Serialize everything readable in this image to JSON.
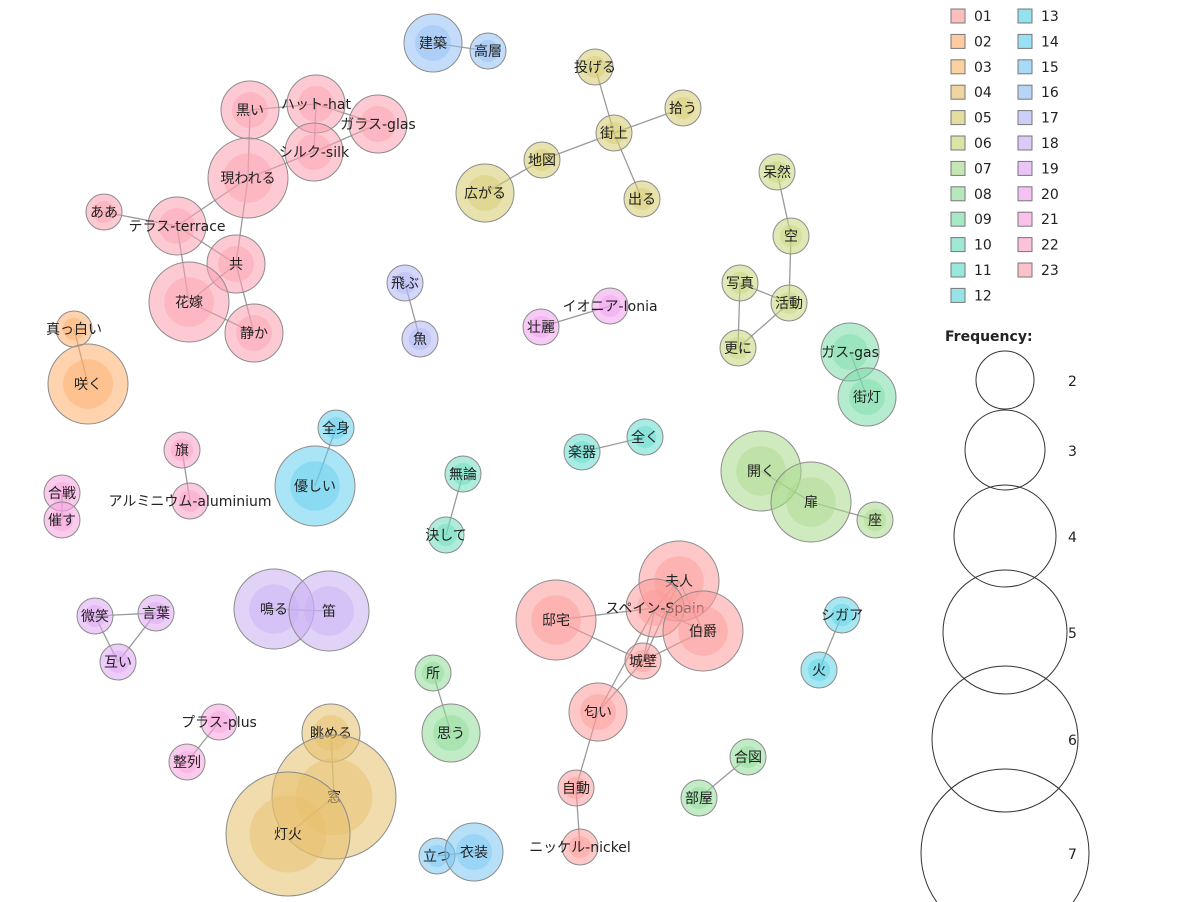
{
  "chart_data": {
    "type": "network",
    "legend": {
      "groups": [
        {
          "id": "01",
          "color": "#fb9a99"
        },
        {
          "id": "02",
          "color": "#fdae6b"
        },
        {
          "id": "03",
          "color": "#f7b96b"
        },
        {
          "id": "04",
          "color": "#e6bf6b"
        },
        {
          "id": "05",
          "color": "#d6cb6e"
        },
        {
          "id": "06",
          "color": "#c6d67a"
        },
        {
          "id": "07",
          "color": "#a8d98a"
        },
        {
          "id": "08",
          "color": "#8fdc97"
        },
        {
          "id": "09",
          "color": "#79dca8"
        },
        {
          "id": "10",
          "color": "#6ddcbd"
        },
        {
          "id": "11",
          "color": "#63dccd"
        },
        {
          "id": "12",
          "color": "#5ed6df"
        },
        {
          "id": "13",
          "color": "#5cd3e6"
        },
        {
          "id": "14",
          "color": "#63cfee"
        },
        {
          "id": "15",
          "color": "#79c6f3"
        },
        {
          "id": "16",
          "color": "#92bff5"
        },
        {
          "id": "17",
          "color": "#b1b6f5"
        },
        {
          "id": "18",
          "color": "#c8aef3"
        },
        {
          "id": "19",
          "color": "#dfa5f3"
        },
        {
          "id": "20",
          "color": "#f0a0ef"
        },
        {
          "id": "21",
          "color": "#f8a1de"
        },
        {
          "id": "22",
          "color": "#fba0c8"
        },
        {
          "id": "23",
          "color": "#fb9fae"
        }
      ],
      "frequency_title": "Frequency:",
      "frequency_values": [
        2,
        3,
        4,
        5,
        6,
        7
      ]
    },
    "nodes": [
      {
        "id": "kuroi",
        "label": "黒い",
        "group": "23",
        "freq": 2
      },
      {
        "id": "hat",
        "label": "ハット-hat",
        "group": "23",
        "freq": 2
      },
      {
        "id": "glass",
        "label": "ガラス-glas",
        "group": "23",
        "freq": 2
      },
      {
        "id": "silk",
        "label": "シルク-silk",
        "group": "23",
        "freq": 2
      },
      {
        "id": "arawareru",
        "label": "現われる",
        "group": "23",
        "freq": 3
      },
      {
        "id": "aa",
        "label": "ああ",
        "group": "23",
        "freq": 1
      },
      {
        "id": "terrace",
        "label": "テラス-terrace",
        "group": "23",
        "freq": 2
      },
      {
        "id": "tomo",
        "label": "共",
        "group": "23",
        "freq": 2
      },
      {
        "id": "hanayome",
        "label": "花嫁",
        "group": "23",
        "freq": 3
      },
      {
        "id": "shizuka",
        "label": "静か",
        "group": "23",
        "freq": 2
      },
      {
        "id": "kenchiku",
        "label": "建築",
        "group": "16",
        "freq": 2
      },
      {
        "id": "kouso",
        "label": "高層",
        "group": "16",
        "freq": 1
      },
      {
        "id": "nageru",
        "label": "投げる",
        "group": "05",
        "freq": 1
      },
      {
        "id": "hirou",
        "label": "拾う",
        "group": "05",
        "freq": 1
      },
      {
        "id": "machigami",
        "label": "街上",
        "group": "05",
        "freq": 1
      },
      {
        "id": "chizu",
        "label": "地図",
        "group": "05",
        "freq": 1
      },
      {
        "id": "hirogaru",
        "label": "広がる",
        "group": "05",
        "freq": 2
      },
      {
        "id": "deru",
        "label": "出る",
        "group": "05",
        "freq": 1
      },
      {
        "id": "bozen",
        "label": "呆然",
        "group": "06",
        "freq": 1
      },
      {
        "id": "sora",
        "label": "空",
        "group": "06",
        "freq": 1
      },
      {
        "id": "shashin",
        "label": "写真",
        "group": "06",
        "freq": 1
      },
      {
        "id": "katsudo",
        "label": "活動",
        "group": "06",
        "freq": 1
      },
      {
        "id": "sarani",
        "label": "更に",
        "group": "06",
        "freq": 1
      },
      {
        "id": "tobu",
        "label": "飛ぶ",
        "group": "17",
        "freq": 1
      },
      {
        "id": "sakana",
        "label": "魚",
        "group": "17",
        "freq": 1
      },
      {
        "id": "ionia",
        "label": "イオニア-Ionia",
        "group": "20",
        "freq": 1
      },
      {
        "id": "sorei",
        "label": "壮麗",
        "group": "20",
        "freq": 1
      },
      {
        "id": "gas",
        "label": "ガス-gas",
        "group": "09",
        "freq": 2
      },
      {
        "id": "gaito",
        "label": "街灯",
        "group": "09",
        "freq": 2
      },
      {
        "id": "masshiroi",
        "label": "真っ白い",
        "group": "02",
        "freq": 1
      },
      {
        "id": "saku",
        "label": "咲く",
        "group": "02",
        "freq": 3
      },
      {
        "id": "hata",
        "label": "旗",
        "group": "22",
        "freq": 1
      },
      {
        "id": "aluminium",
        "label": "アルミニウム-aluminium",
        "group": "22",
        "freq": 1
      },
      {
        "id": "zenshin",
        "label": "全身",
        "group": "14",
        "freq": 1
      },
      {
        "id": "yasashii",
        "label": "優しい",
        "group": "14",
        "freq": 3
      },
      {
        "id": "muron",
        "label": "無論",
        "group": "10",
        "freq": 1
      },
      {
        "id": "kesshite",
        "label": "決して",
        "group": "10",
        "freq": 1
      },
      {
        "id": "gakki",
        "label": "楽器",
        "group": "11",
        "freq": 1
      },
      {
        "id": "mattaku",
        "label": "全く",
        "group": "11",
        "freq": 1
      },
      {
        "id": "hiraku",
        "label": "開く",
        "group": "07",
        "freq": 3
      },
      {
        "id": "tobira",
        "label": "扉",
        "group": "07",
        "freq": 3
      },
      {
        "id": "za",
        "label": "座",
        "group": "07",
        "freq": 1
      },
      {
        "id": "kassen",
        "label": "合戦",
        "group": "21",
        "freq": 1
      },
      {
        "id": "moyosu",
        "label": "催す",
        "group": "21",
        "freq": 1
      },
      {
        "id": "bisho",
        "label": "微笑",
        "group": "19",
        "freq": 1
      },
      {
        "id": "kotoba",
        "label": "言葉",
        "group": "19",
        "freq": 1
      },
      {
        "id": "tagai",
        "label": "互い",
        "group": "19",
        "freq": 1
      },
      {
        "id": "naru",
        "label": "鳴る",
        "group": "18",
        "freq": 3
      },
      {
        "id": "fue",
        "label": "笛",
        "group": "18",
        "freq": 3
      },
      {
        "id": "tokoro",
        "label": "所",
        "group": "08",
        "freq": 1
      },
      {
        "id": "omou",
        "label": "思う",
        "group": "08",
        "freq": 2
      },
      {
        "id": "teitaku",
        "label": "邸宅",
        "group": "01",
        "freq": 3
      },
      {
        "id": "fujin",
        "label": "夫人",
        "group": "01",
        "freq": 3
      },
      {
        "id": "spain",
        "label": "スペイン-Spain",
        "group": "01",
        "freq": 2
      },
      {
        "id": "hakushaku",
        "label": "伯爵",
        "group": "01",
        "freq": 3
      },
      {
        "id": "joheki",
        "label": "城壁",
        "group": "01",
        "freq": 1
      },
      {
        "id": "nioi",
        "label": "匂い",
        "group": "01",
        "freq": 2
      },
      {
        "id": "jido",
        "label": "自動",
        "group": "01",
        "freq": 1
      },
      {
        "id": "nickel",
        "label": "ニッケル-nickel",
        "group": "01",
        "freq": 1
      },
      {
        "id": "cigar",
        "label": "シガア",
        "group": "13",
        "freq": 1
      },
      {
        "id": "hi",
        "label": "火",
        "group": "13",
        "freq": 1
      },
      {
        "id": "plus",
        "label": "プラス-plus",
        "group": "21",
        "freq": 1
      },
      {
        "id": "seiretsu",
        "label": "整列",
        "group": "21",
        "freq": 1
      },
      {
        "id": "nagameru",
        "label": "眺める",
        "group": "04",
        "freq": 2
      },
      {
        "id": "mado",
        "label": "窓",
        "group": "04",
        "freq": 5
      },
      {
        "id": "toka",
        "label": "灯火",
        "group": "04",
        "freq": 5
      },
      {
        "id": "aizu",
        "label": "合図",
        "group": "08",
        "freq": 1
      },
      {
        "id": "heya",
        "label": "部屋",
        "group": "08",
        "freq": 1
      },
      {
        "id": "tatsu",
        "label": "立つ",
        "group": "15",
        "freq": 1
      },
      {
        "id": "isho",
        "label": "衣装",
        "group": "15",
        "freq": 2
      }
    ],
    "edges": [
      [
        "kuroi",
        "hat"
      ],
      [
        "kuroi",
        "arawareru"
      ],
      [
        "hat",
        "silk"
      ],
      [
        "hat",
        "glass"
      ],
      [
        "glass",
        "silk"
      ],
      [
        "silk",
        "arawareru"
      ],
      [
        "arawareru",
        "terrace"
      ],
      [
        "arawareru",
        "tomo"
      ],
      [
        "terrace",
        "tomo"
      ],
      [
        "terrace",
        "hanayome"
      ],
      [
        "tomo",
        "hanayome"
      ],
      [
        "tomo",
        "shizuka"
      ],
      [
        "hanayome",
        "shizuka"
      ],
      [
        "aa",
        "terrace"
      ],
      [
        "kenchiku",
        "kouso"
      ],
      [
        "nageru",
        "machigami"
      ],
      [
        "hirou",
        "machigami"
      ],
      [
        "machigami",
        "chizu"
      ],
      [
        "machigami",
        "deru"
      ],
      [
        "chizu",
        "hirogaru"
      ],
      [
        "bozen",
        "sora"
      ],
      [
        "sora",
        "katsudo"
      ],
      [
        "shashin",
        "katsudo"
      ],
      [
        "shashin",
        "sarani"
      ],
      [
        "katsudo",
        "sarani"
      ],
      [
        "tobu",
        "sakana"
      ],
      [
        "ionia",
        "sorei"
      ],
      [
        "gas",
        "gaito"
      ],
      [
        "masshiroi",
        "saku"
      ],
      [
        "hata",
        "aluminium"
      ],
      [
        "zenshin",
        "yasashii"
      ],
      [
        "muron",
        "kesshite"
      ],
      [
        "gakki",
        "mattaku"
      ],
      [
        "hiraku",
        "tobira"
      ],
      [
        "tobira",
        "za"
      ],
      [
        "kassen",
        "moyosu"
      ],
      [
        "bisho",
        "kotoba"
      ],
      [
        "bisho",
        "tagai"
      ],
      [
        "kotoba",
        "tagai"
      ],
      [
        "naru",
        "fue"
      ],
      [
        "tokoro",
        "omou"
      ],
      [
        "teitaku",
        "spain"
      ],
      [
        "teitaku",
        "joheki"
      ],
      [
        "fujin",
        "spain"
      ],
      [
        "fujin",
        "hakushaku"
      ],
      [
        "spain",
        "hakushaku"
      ],
      [
        "spain",
        "joheki"
      ],
      [
        "hakushaku",
        "joheki"
      ],
      [
        "fujin",
        "joheki"
      ],
      [
        "joheki",
        "nioi"
      ],
      [
        "spain",
        "nioi"
      ],
      [
        "nioi",
        "jido"
      ],
      [
        "jido",
        "nickel"
      ],
      [
        "cigar",
        "hi"
      ],
      [
        "plus",
        "seiretsu"
      ],
      [
        "nagameru",
        "mado"
      ],
      [
        "mado",
        "toka"
      ],
      [
        "aizu",
        "heya"
      ],
      [
        "tatsu",
        "isho"
      ]
    ]
  }
}
